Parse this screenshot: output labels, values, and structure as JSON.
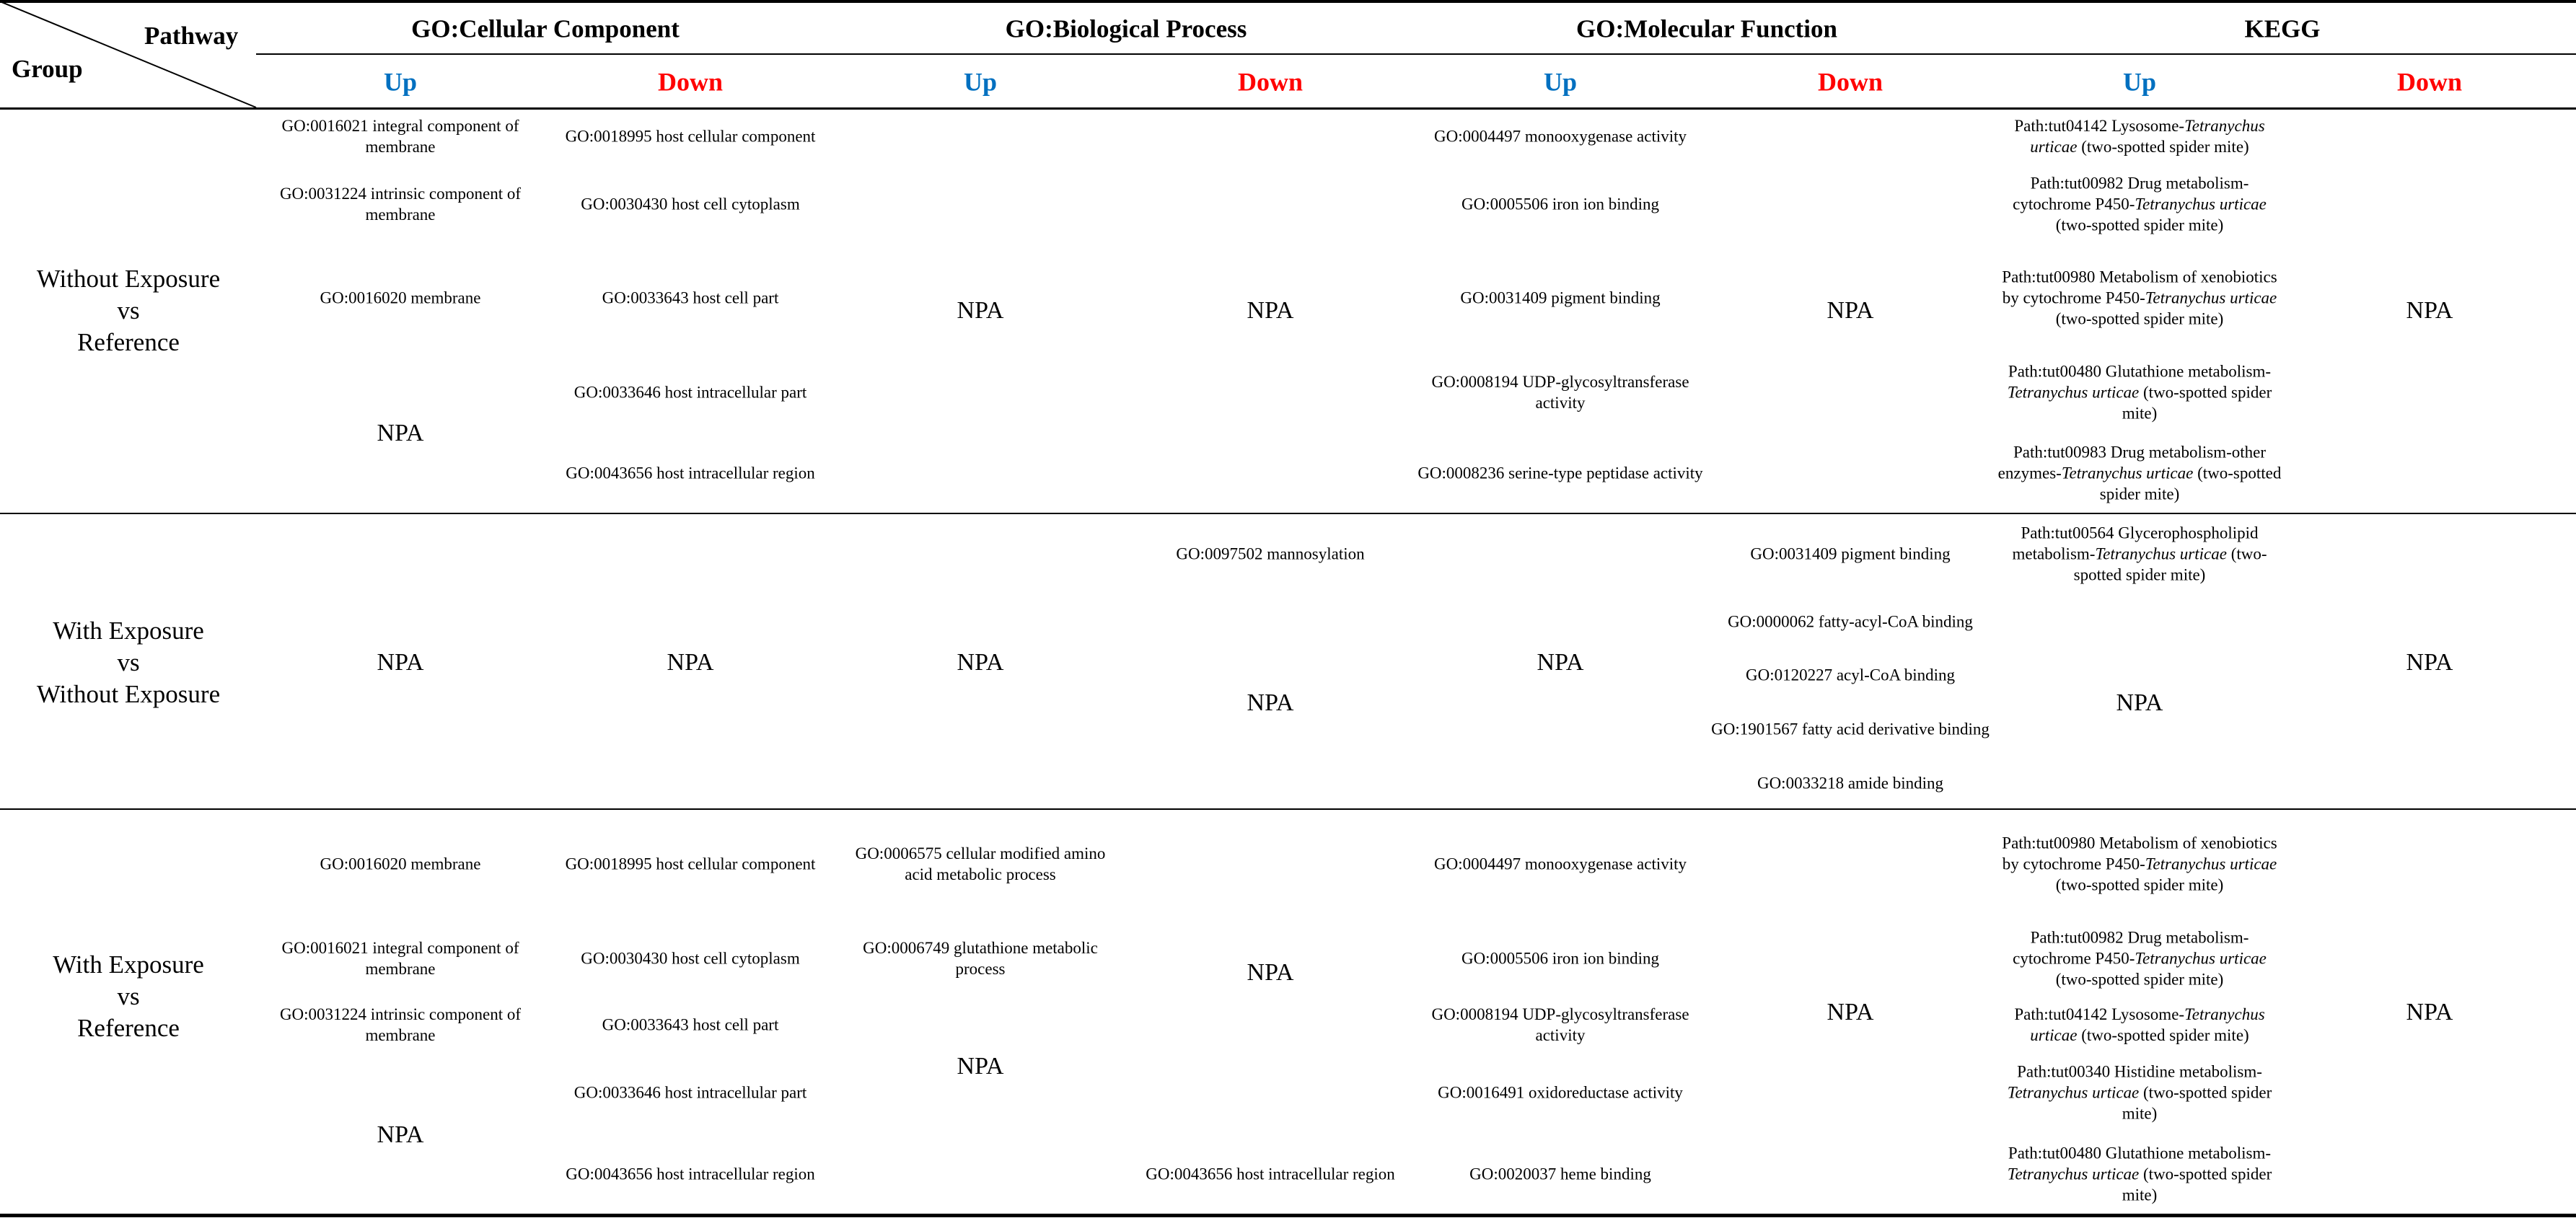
{
  "header": {
    "corner_pathway": "Pathway",
    "corner_group": "Group",
    "categories": [
      "GO:Cellular Component",
      "GO:Biological Process",
      "GO:Molecular Function",
      "KEGG"
    ],
    "up": "Up",
    "down": "Down"
  },
  "colors": {
    "up": "#0070C0",
    "down": "#FF0000",
    "rules": "#000000"
  },
  "npa": "NPA",
  "rows": [
    {
      "group": [
        "Without Exposure",
        "vs",
        "Reference"
      ],
      "cc_up": [
        "GO:0016021 integral component of membrane",
        "GO:0031224 intrinsic component of membrane",
        "GO:0016020 membrane"
      ],
      "cc_down": [
        "GO:0018995 host cellular component",
        "GO:0030430 host cell cytoplasm",
        "GO:0033643 host cell part",
        "GO:0033646 host intracellular part",
        "GO:0043656 host intracellular region"
      ],
      "mf_up": [
        "GO:0004497 monooxygenase activity",
        "GO:0005506 iron ion binding",
        "GO:0031409 pigment binding",
        "GO:0008194 UDP-glycosyltransferase activity",
        "GO:0008236 serine-type peptidase activity"
      ],
      "kegg_up": [
        {
          "pre": "Path:tut04142 Lysosome-",
          "sp": "Tetranychus urticae",
          "post": " (two-spotted spider mite)"
        },
        {
          "pre": "Path:tut00982 Drug metabolism-cytochrome P450-",
          "sp": "Tetranychus urticae",
          "post": " (two-spotted spider mite)"
        },
        {
          "pre": "Path:tut00980 Metabolism of xenobiotics by cytochrome P450-",
          "sp": "Tetranychus urticae",
          "post": " (two-spotted spider mite)"
        },
        {
          "pre": "Path:tut00480 Glutathione metabolism-",
          "sp": "Tetranychus urticae",
          "post": " (two-spotted spider mite)"
        },
        {
          "pre": "Path:tut00983 Drug metabolism-other enzymes-",
          "sp": "Tetranychus urticae",
          "post": " (two-spotted spider mite)"
        }
      ]
    },
    {
      "group": [
        "With Exposure",
        "vs",
        "Without Exposure"
      ],
      "bp_up": [
        "GO:0097502 mannosylation"
      ],
      "mf_down": [
        "GO:0031409 pigment binding",
        "GO:0000062 fatty-acyl-CoA binding",
        "GO:0120227 acyl-CoA binding",
        "GO:1901567 fatty acid derivative binding",
        "GO:0033218 amide binding"
      ],
      "kegg_up": [
        {
          "pre": "Path:tut00564 Glycerophospholipid metabolism-",
          "sp": "Tetranychus urticae",
          "post": " (two-spotted spider mite)"
        }
      ]
    },
    {
      "group": [
        "With Exposure",
        "vs",
        "Reference"
      ],
      "cc_up": [
        "GO:0016020 membrane",
        "GO:0016021 integral component of membrane",
        "GO:0031224 intrinsic component of membrane"
      ],
      "cc_down": [
        "GO:0018995 host cellular component",
        "GO:0030430 host cell cytoplasm",
        "GO:0033643 host cell part",
        "GO:0033646 host intracellular part",
        "GO:0043656 host intracellular region"
      ],
      "bp_up": [
        "GO:0006575 cellular modified amino acid metabolic process",
        "GO:0006749 glutathione metabolic process"
      ],
      "bp_down": [
        "GO:0043656 host intracellular region"
      ],
      "mf_up": [
        "GO:0004497 monooxygenase activity",
        "GO:0005506 iron ion binding",
        "GO:0008194 UDP-glycosyltransferase activity",
        "GO:0016491 oxidoreductase activity",
        "GO:0020037 heme binding"
      ],
      "kegg_up": [
        {
          "pre": "Path:tut00980 Metabolism of xenobiotics by cytochrome P450-",
          "sp": "Tetranychus urticae",
          "post": " (two-spotted spider mite)"
        },
        {
          "pre": "Path:tut00982 Drug metabolism-cytochrome P450-",
          "sp": "Tetranychus urticae",
          "post": " (two-spotted spider mite)"
        },
        {
          "pre": "Path:tut04142 Lysosome-",
          "sp": "Tetranychus urticae",
          "post": " (two-spotted spider mite)"
        },
        {
          "pre": "Path:tut00340 Histidine metabolism-",
          "sp": "Tetranychus urticae",
          "post": " (two-spotted spider mite)"
        },
        {
          "pre": "Path:tut00480 Glutathione metabolism-",
          "sp": "Tetranychus urticae",
          "post": " (two-spotted spider mite)"
        }
      ]
    }
  ]
}
